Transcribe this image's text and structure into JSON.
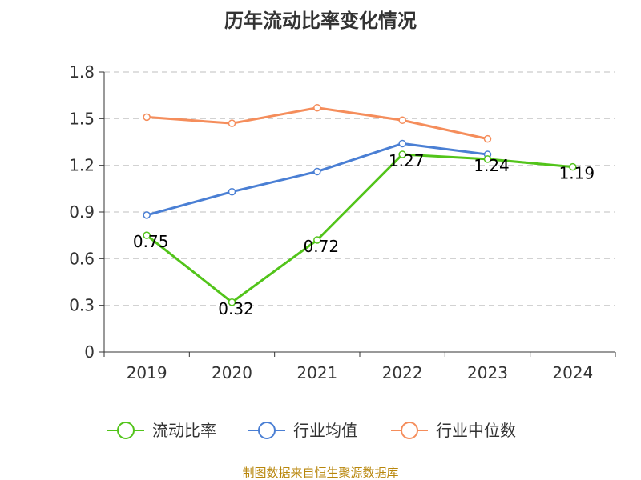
{
  "chart_data": {
    "type": "line",
    "title": "历年流动比率变化情况",
    "categories": [
      "2019",
      "2020",
      "2021",
      "2022",
      "2023",
      "2024"
    ],
    "ylim": [
      0,
      1.8
    ],
    "yticks": [
      "0",
      "0.3",
      "0.6",
      "0.9",
      "1.2",
      "1.5",
      "1.8"
    ],
    "grid": true,
    "legend_position": "bottom",
    "series": [
      {
        "name": "流动比率",
        "color": "#52c41a",
        "values": [
          0.75,
          0.32,
          0.72,
          1.27,
          1.24,
          1.19
        ],
        "labels": [
          "0.75",
          "0.32",
          "0.72",
          "1.27",
          "1.24",
          "1.19"
        ]
      },
      {
        "name": "行业均值",
        "color": "#4a7fd4",
        "values": [
          0.88,
          1.03,
          1.16,
          1.34,
          1.27,
          null
        ]
      },
      {
        "name": "行业中位数",
        "color": "#f58d5b",
        "values": [
          1.51,
          1.47,
          1.57,
          1.49,
          1.37,
          null
        ]
      }
    ],
    "source": "制图数据来自恒生聚源数据库"
  }
}
